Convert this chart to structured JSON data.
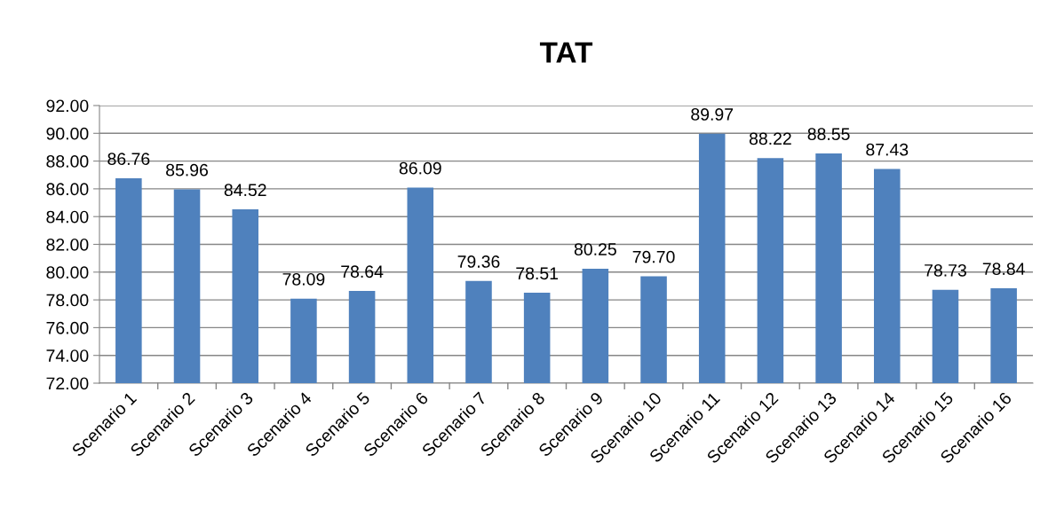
{
  "chart_data": {
    "type": "bar",
    "title": "TAT",
    "categories": [
      "Scenario 1",
      "Scenario 2",
      "Scenario 3",
      "Scenario 4",
      "Scenario 5",
      "Scenario 6",
      "Scenario 7",
      "Scenario 8",
      "Scenario 9",
      "Scenario 10",
      "Scenario 11",
      "Scenario 12",
      "Scenario 13",
      "Scenario 14",
      "Scenario 15",
      "Scenario 16"
    ],
    "values": [
      86.76,
      85.96,
      84.52,
      78.09,
      78.64,
      86.09,
      79.36,
      78.51,
      80.25,
      79.7,
      89.97,
      88.22,
      88.55,
      87.43,
      78.73,
      78.84
    ],
    "value_labels": [
      "86.76",
      "85.96",
      "84.52",
      "78.09",
      "78.64",
      "86.09",
      "79.36",
      "78.51",
      "80.25",
      "79.70",
      "89.97",
      "88.22",
      "88.55",
      "87.43",
      "78.73",
      "78.84"
    ],
    "color": "#4f81bd",
    "ylim": [
      72,
      92
    ],
    "yticks": [
      {
        "value": 72,
        "label": "72.00"
      },
      {
        "value": 74,
        "label": "74.00"
      },
      {
        "value": 76,
        "label": "76.00"
      },
      {
        "value": 78,
        "label": "78.00"
      },
      {
        "value": 80,
        "label": "80.00"
      },
      {
        "value": 82,
        "label": "82.00"
      },
      {
        "value": 84,
        "label": "84.00"
      },
      {
        "value": 86,
        "label": "86.00"
      },
      {
        "value": 88,
        "label": "88.00"
      },
      {
        "value": 90,
        "label": "90.00"
      },
      {
        "value": 92,
        "label": "92.00"
      }
    ],
    "grid": "y",
    "legend": false
  }
}
